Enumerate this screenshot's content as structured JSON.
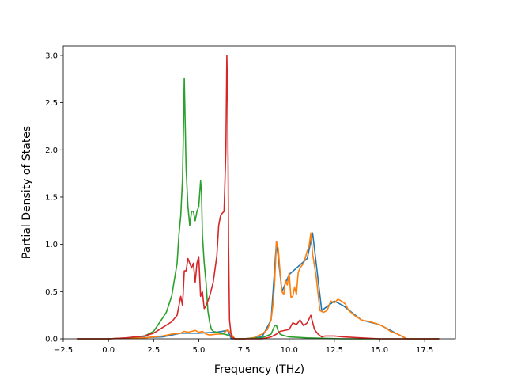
{
  "chart_data": {
    "type": "line",
    "xlabel": "Frequency (THz)",
    "ylabel": "Partial Density of States",
    "xlim": [
      -2.5,
      19.2
    ],
    "ylim": [
      0.0,
      3.1
    ],
    "xticks": [
      -2.5,
      0.0,
      2.5,
      5.0,
      7.5,
      10.0,
      12.5,
      15.0,
      17.5
    ],
    "xtick_labels": [
      "−2.5",
      "0.0",
      "2.5",
      "5.0",
      "7.5",
      "10.0",
      "12.5",
      "15.0",
      "17.5"
    ],
    "yticks": [
      0.0,
      0.5,
      1.0,
      1.5,
      2.0,
      2.5,
      3.0
    ],
    "ytick_labels": [
      "0.0",
      "0.5",
      "1.0",
      "1.5",
      "2.0",
      "2.5",
      "3.0"
    ],
    "grid": false,
    "series": [
      {
        "color": "#1f77b4",
        "x": [
          -1.7,
          0,
          3,
          4,
          5,
          6,
          6.6,
          6.8,
          7.5,
          8.5,
          9,
          9.3,
          9.6,
          10,
          11,
          11.3,
          11.8,
          12.5,
          13,
          14,
          15,
          16,
          16.5,
          18.3
        ],
        "y": [
          0,
          0,
          0.02,
          0.06,
          0.06,
          0.07,
          0.09,
          0,
          0,
          0.02,
          0.2,
          1.03,
          0.5,
          0.68,
          0.85,
          1.12,
          0.3,
          0.4,
          0.35,
          0.2,
          0.15,
          0.05,
          0,
          0
        ]
      },
      {
        "color": "#ff7f0e",
        "x": [
          -1.7,
          0,
          1,
          2,
          2.5,
          3,
          3.5,
          4,
          4.2,
          4.4,
          4.6,
          4.8,
          5.0,
          5.2,
          5.4,
          5.6,
          6.0,
          6.3,
          6.5,
          6.6,
          6.8,
          7.0,
          7.5,
          8.0,
          8.5,
          8.8,
          9.0,
          9.1,
          9.2,
          9.3,
          9.4,
          9.5,
          9.6,
          9.7,
          9.8,
          9.9,
          10.0,
          10.1,
          10.2,
          10.3,
          10.4,
          10.5,
          10.6,
          10.8,
          11.0,
          11.1,
          11.2,
          11.3,
          11.5,
          11.7,
          11.9,
          12.1,
          12.3,
          12.5,
          12.7,
          12.9,
          13.1,
          13.3,
          13.6,
          14.0,
          14.5,
          15.0,
          15.3,
          15.6,
          16.0,
          16.3,
          16.5,
          17.0,
          18.3
        ],
        "y": [
          0,
          0,
          0.005,
          0.01,
          0.02,
          0.03,
          0.05,
          0.06,
          0.08,
          0.07,
          0.08,
          0.09,
          0.07,
          0.08,
          0.05,
          0.04,
          0.05,
          0.05,
          0.08,
          0.1,
          0.05,
          0.0,
          0.0,
          0.01,
          0.05,
          0.1,
          0.2,
          0.35,
          0.6,
          1.03,
          0.95,
          0.7,
          0.5,
          0.47,
          0.62,
          0.57,
          0.7,
          0.44,
          0.45,
          0.55,
          0.47,
          0.7,
          0.75,
          0.8,
          0.93,
          0.98,
          1.12,
          0.9,
          0.65,
          0.3,
          0.28,
          0.3,
          0.4,
          0.38,
          0.42,
          0.4,
          0.37,
          0.3,
          0.25,
          0.2,
          0.18,
          0.15,
          0.12,
          0.08,
          0.05,
          0.02,
          0.0,
          0.0,
          0.0
        ]
      },
      {
        "color": "#2ca02c",
        "x": [
          -1.7,
          0,
          1,
          2,
          2.5,
          3.0,
          3.2,
          3.5,
          3.8,
          3.9,
          4.0,
          4.1,
          4.15,
          4.2,
          4.3,
          4.4,
          4.5,
          4.6,
          4.7,
          4.8,
          4.9,
          5.0,
          5.1,
          5.15,
          5.2,
          5.3,
          5.4,
          5.5,
          5.6,
          5.7,
          5.8,
          6.0,
          6.2,
          6.4,
          6.6,
          6.8,
          7.0,
          7.5,
          8.5,
          9.0,
          9.2,
          9.3,
          9.4,
          9.5,
          9.6,
          9.8,
          10.0,
          11.0,
          12.0,
          13.0,
          18.3
        ],
        "y": [
          0,
          0,
          0.01,
          0.03,
          0.08,
          0.22,
          0.28,
          0.45,
          0.8,
          1.1,
          1.3,
          1.7,
          2.2,
          2.76,
          1.8,
          1.4,
          1.2,
          1.35,
          1.35,
          1.25,
          1.35,
          1.4,
          1.67,
          1.55,
          1.1,
          0.8,
          0.6,
          0.3,
          0.18,
          0.1,
          0.08,
          0.07,
          0.06,
          0.05,
          0.04,
          0.02,
          0.0,
          0.0,
          0.01,
          0.05,
          0.14,
          0.14,
          0.08,
          0.05,
          0.04,
          0.03,
          0.02,
          0.01,
          0.005,
          0.0,
          0.0
        ]
      },
      {
        "color": "#d62728",
        "x": [
          -1.7,
          0,
          1,
          2,
          2.5,
          3.0,
          3.5,
          3.8,
          4.0,
          4.1,
          4.2,
          4.3,
          4.4,
          4.5,
          4.6,
          4.7,
          4.8,
          4.9,
          5.0,
          5.1,
          5.2,
          5.3,
          5.4,
          5.5,
          5.6,
          5.8,
          6.0,
          6.1,
          6.2,
          6.3,
          6.4,
          6.5,
          6.55,
          6.6,
          6.65,
          6.7,
          6.8,
          7.0,
          7.5,
          8.5,
          9.0,
          9.3,
          9.5,
          10.0,
          10.2,
          10.4,
          10.6,
          10.8,
          11.0,
          11.2,
          11.4,
          11.6,
          11.8,
          12.0,
          12.5,
          13.0,
          14.0,
          15.0,
          18.3
        ],
        "y": [
          0,
          0,
          0.01,
          0.03,
          0.06,
          0.12,
          0.18,
          0.25,
          0.45,
          0.35,
          0.72,
          0.72,
          0.85,
          0.8,
          0.75,
          0.8,
          0.6,
          0.8,
          0.87,
          0.45,
          0.5,
          0.32,
          0.35,
          0.4,
          0.45,
          0.6,
          0.88,
          1.2,
          1.3,
          1.33,
          1.35,
          2.0,
          3.0,
          2.5,
          1.0,
          0.2,
          0.02,
          0.0,
          0.0,
          0.0,
          0.02,
          0.05,
          0.08,
          0.1,
          0.17,
          0.15,
          0.2,
          0.14,
          0.17,
          0.25,
          0.1,
          0.05,
          0.02,
          0.03,
          0.03,
          0.02,
          0.01,
          0.0,
          0.0
        ]
      }
    ]
  }
}
